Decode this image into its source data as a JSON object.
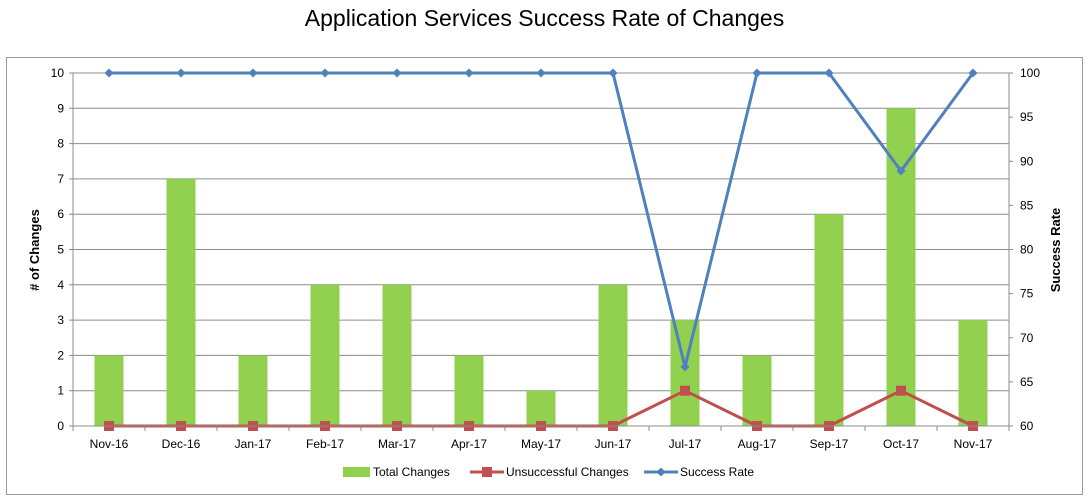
{
  "chart_data": {
    "type": "bar",
    "title": "Application Services Success Rate of Changes",
    "categories": [
      "Nov-16",
      "Dec-16",
      "Jan-17",
      "Feb-17",
      "Mar-17",
      "Apr-17",
      "May-17",
      "Jun-17",
      "Jul-17",
      "Aug-17",
      "Sep-17",
      "Oct-17",
      "Nov-17"
    ],
    "ylabel": "# of Changes",
    "y2label": "Success Rate",
    "ylim": [
      0,
      10
    ],
    "y2lim": [
      60,
      100
    ],
    "y_ticks": [
      0,
      1,
      2,
      3,
      4,
      5,
      6,
      7,
      8,
      9,
      10
    ],
    "y2_ticks": [
      60,
      65,
      70,
      75,
      80,
      85,
      90,
      95,
      100
    ],
    "grid": true,
    "legend": "bottom",
    "series": [
      {
        "name": "Total Changes",
        "type": "bar",
        "axis": "left",
        "color": "#92d050",
        "values": [
          2,
          7,
          2,
          4,
          4,
          2,
          1,
          4,
          3,
          2,
          6,
          9,
          3
        ]
      },
      {
        "name": "Unsuccessful Changes",
        "type": "line",
        "axis": "left",
        "color": "#c0504d",
        "marker": "square",
        "values": [
          0,
          0,
          0,
          0,
          0,
          0,
          0,
          0,
          1,
          0,
          0,
          1,
          0
        ]
      },
      {
        "name": "Success Rate",
        "type": "line",
        "axis": "right",
        "color": "#4f81bd",
        "marker": "diamond",
        "values": [
          100,
          100,
          100,
          100,
          100,
          100,
          100,
          100,
          66.7,
          100,
          100,
          88.9,
          100
        ]
      }
    ]
  }
}
